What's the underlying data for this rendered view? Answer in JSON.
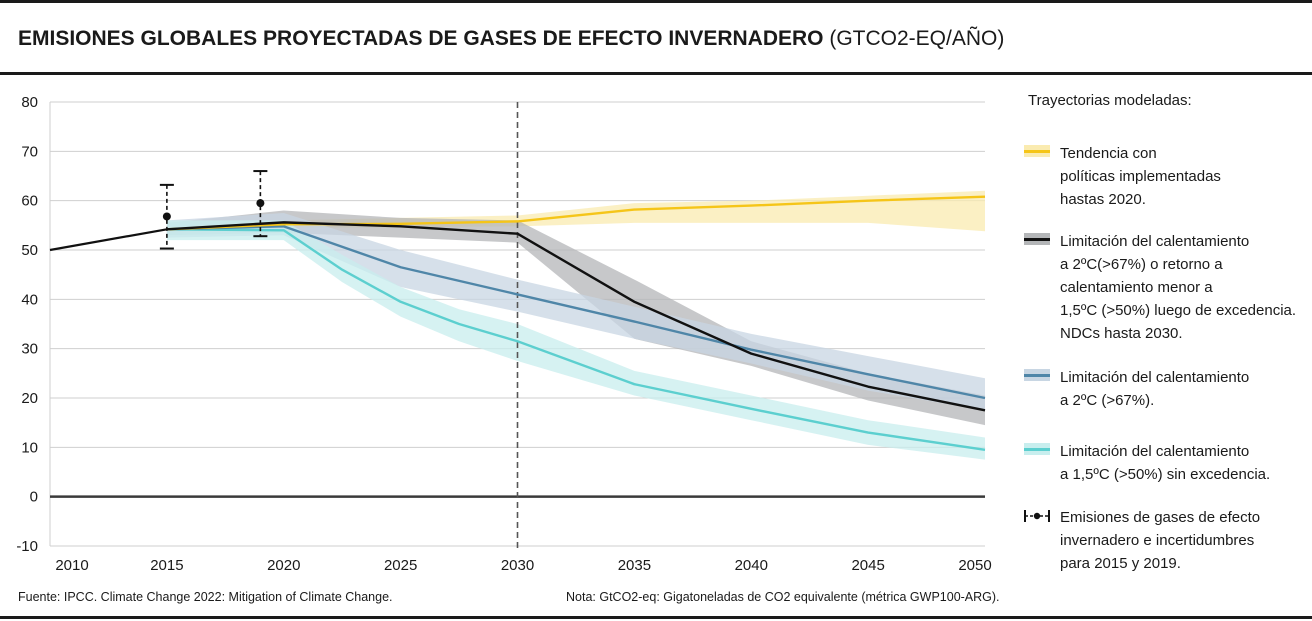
{
  "title": {
    "main": "EMISIONES GLOBALES PROYECTADAS DE GASES DE EFECTO INVERNADERO",
    "unit": "(GTCO2-EQ/AÑO)"
  },
  "legend": {
    "title": "Trayectorias modeladas:",
    "items": [
      {
        "label": "Tendencia con\npolíticas implementadas\nhastas 2020.",
        "color": "#f5c518"
      },
      {
        "label": "Limitación del calentamiento\na 2ºC(>67%) o retorno a\ncalentamiento menor a\n1,5ºC (>50%) luego de excedencia.\nNDCs hasta 2030.",
        "color": "#111111"
      },
      {
        "label": "Limitación del calentamiento\na 2ºC (>67%).",
        "color": "#4f86a8"
      },
      {
        "label": "Limitación del calentamiento\na 1,5ºC (>50%) sin excedencia.",
        "color": "#5ccfcf"
      },
      {
        "label": "Emisiones de gases de efecto\ninvernadero e incertidumbres\npara 2015 y 2019.",
        "color": "#111111",
        "icon": "errorbar-icon"
      }
    ]
  },
  "footer": {
    "source": "Fuente: IPCC. Climate Change 2022: Mitigation of Climate Change.",
    "note": "Nota: GtCO2-eq: Gigatoneladas de CO2 equivalente (métrica GWP100-ARG)."
  },
  "chart_data": {
    "type": "line",
    "xlabel": "",
    "ylabel": "",
    "xlim": [
      2010,
      2050
    ],
    "ylim": [
      -10,
      80
    ],
    "x_ticks": [
      2010,
      2015,
      2020,
      2025,
      2030,
      2035,
      2040,
      2045,
      2050
    ],
    "y_ticks": [
      -10,
      0,
      10,
      20,
      30,
      40,
      50,
      60,
      70,
      80
    ],
    "grid": "horizontal",
    "reference_line_x": 2030,
    "zero_line": true,
    "historical": {
      "x": [
        2010,
        2015
      ],
      "y": [
        50,
        54.2
      ],
      "color": "#111111"
    },
    "series": [
      {
        "key": "policies",
        "color": "#f5c518",
        "band_color": "#faebb0",
        "x": [
          2015,
          2020,
          2025,
          2030,
          2035,
          2040,
          2045,
          2050
        ],
        "y": [
          54.2,
          55.2,
          55.3,
          55.8,
          58.2,
          59.0,
          60.0,
          60.8
        ],
        "band_low": [
          54.0,
          54.5,
          54.6,
          54.8,
          55.5,
          55.5,
          55.5,
          53.8
        ],
        "band_high": [
          54.5,
          56.0,
          56.5,
          57.0,
          59.5,
          60.0,
          61.0,
          62.0
        ]
      },
      {
        "key": "2c_ndc",
        "color": "#111111",
        "band_color": "#b4b6b8",
        "x": [
          2015,
          2020,
          2025,
          2030,
          2035,
          2040,
          2045,
          2050
        ],
        "y": [
          54.2,
          55.6,
          54.8,
          53.3,
          39.5,
          29.0,
          22.3,
          17.5
        ],
        "band_low": [
          53.0,
          53.5,
          52.5,
          51.5,
          32.0,
          26.5,
          19.5,
          14.5
        ],
        "band_high": [
          55.5,
          58.0,
          56.5,
          56.0,
          44.0,
          31.5,
          25.0,
          20.5
        ]
      },
      {
        "key": "2c",
        "color": "#4f86a8",
        "band_color": "#c8d6e3",
        "x": [
          2015,
          2020,
          2025,
          2030,
          2035,
          2040,
          2045,
          2050
        ],
        "y": [
          54.2,
          54.8,
          46.5,
          41.0,
          35.5,
          29.8,
          24.8,
          20.0
        ],
        "band_low": [
          52.5,
          53.0,
          42.5,
          37.5,
          32.0,
          27.0,
          21.5,
          17.5
        ],
        "band_high": [
          56.0,
          57.5,
          50.0,
          44.0,
          38.5,
          33.0,
          28.5,
          24.0
        ]
      },
      {
        "key": "1_5c",
        "color": "#5ccfcf",
        "band_color": "#c8eeee",
        "x": [
          2015,
          2020,
          2022.5,
          2025,
          2027.5,
          2030,
          2035,
          2040,
          2045,
          2050
        ],
        "y": [
          54.2,
          54.0,
          46.0,
          39.5,
          35.0,
          31.5,
          22.8,
          17.8,
          13.0,
          9.5
        ],
        "band_low": [
          52.0,
          52.0,
          43.5,
          36.5,
          31.5,
          27.5,
          20.5,
          15.5,
          10.5,
          7.5
        ],
        "band_high": [
          56.0,
          56.0,
          49.0,
          42.5,
          38.0,
          35.0,
          25.5,
          20.5,
          15.5,
          12.0
        ]
      }
    ],
    "error_bars": [
      {
        "x": 2015,
        "y": 56.8,
        "low": 50.3,
        "high": 63.2
      },
      {
        "x": 2019,
        "y": 59.5,
        "low": 52.8,
        "high": 66.0
      }
    ]
  }
}
